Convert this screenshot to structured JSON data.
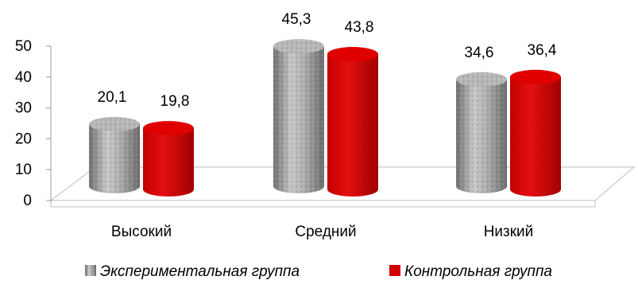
{
  "chart_data": {
    "type": "bar",
    "style": "3d-cylinder",
    "categories": [
      "Высокий",
      "Средний",
      "Низкий"
    ],
    "series": [
      {
        "name": "Экспериментальная группа",
        "values": [
          20.1,
          45.3,
          34.6
        ],
        "value_labels": [
          "20,1",
          "45,3",
          "34,6"
        ],
        "color": "#9a9a9a"
      },
      {
        "name": "Контрольная группа",
        "values": [
          19.8,
          43.8,
          36.4
        ],
        "value_labels": [
          "19,8",
          "43,8",
          "36,4"
        ],
        "color": "#cc0000"
      }
    ],
    "ylim": [
      0,
      50
    ],
    "yticks": [
      0,
      10,
      20,
      30,
      40,
      50
    ],
    "grid": false,
    "legend_position": "bottom"
  }
}
